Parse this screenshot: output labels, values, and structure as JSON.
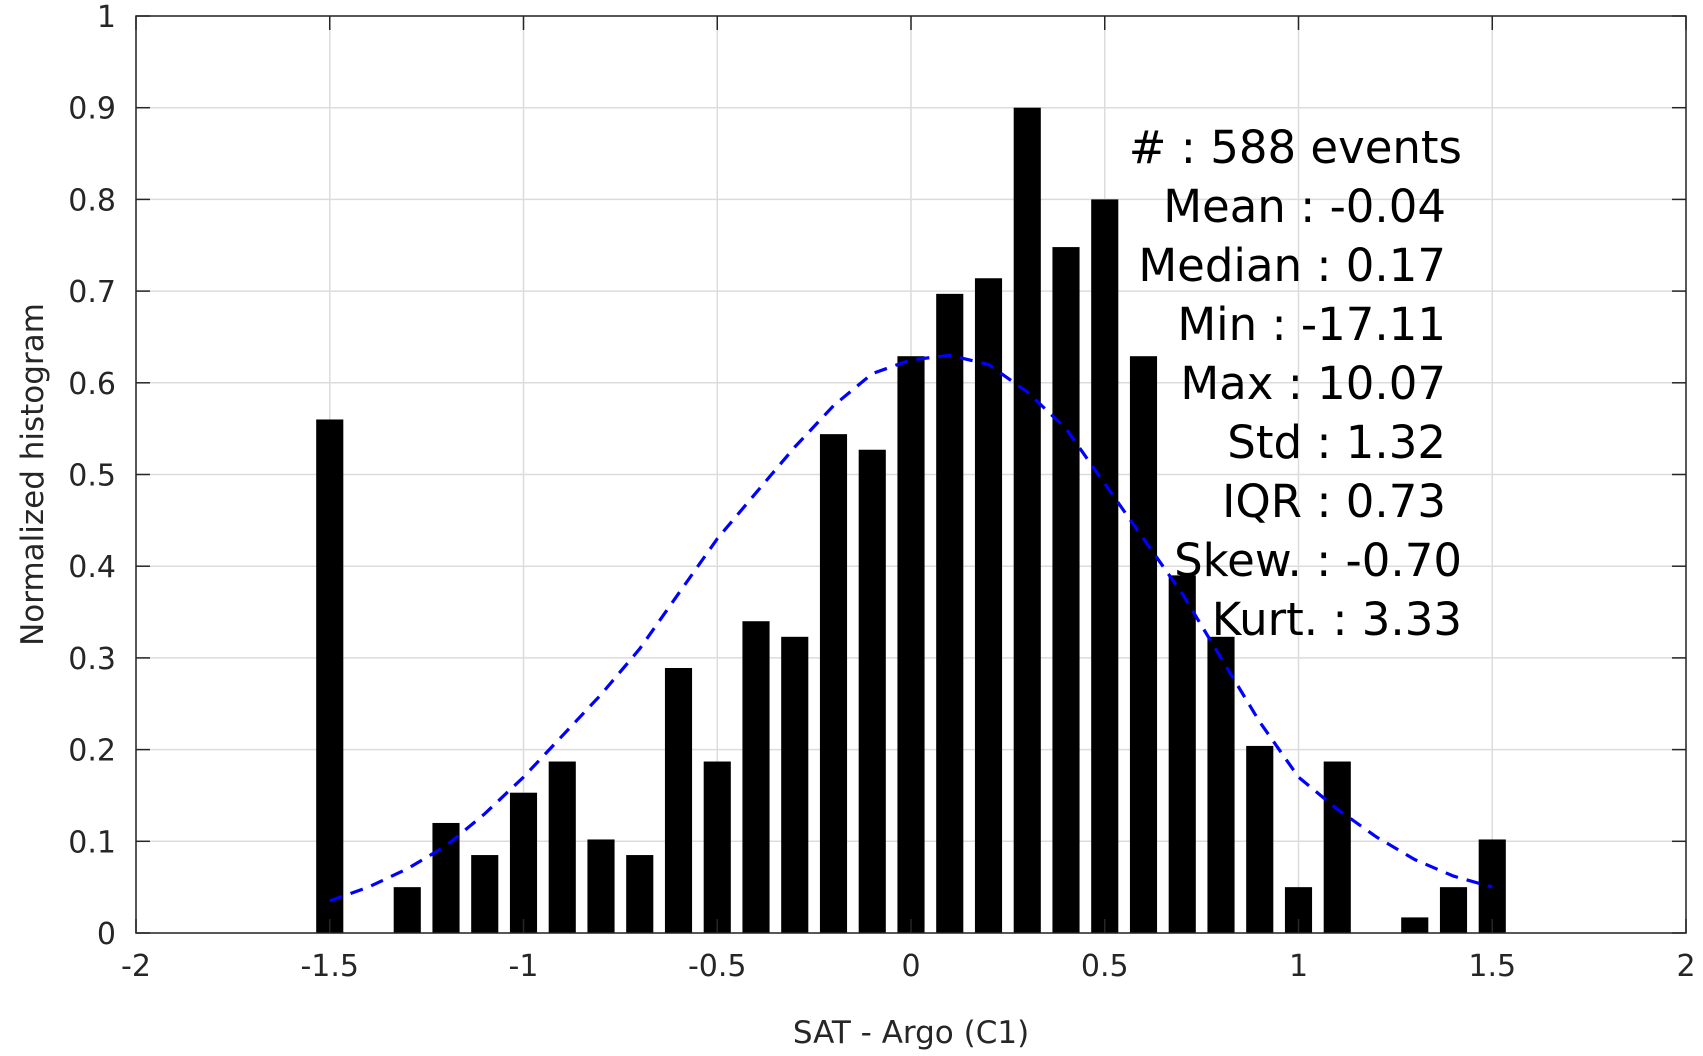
{
  "chart_data": {
    "type": "bar",
    "xlabel": "SAT - Argo (C1)",
    "ylabel": "Normalized histogram",
    "xlim": [
      -2,
      2
    ],
    "ylim": [
      0,
      1
    ],
    "xticks": [
      "-2",
      "-1.5",
      "-1",
      "-0.5",
      "0",
      "0.5",
      "1",
      "1.5",
      "2"
    ],
    "yticks": [
      "0",
      "0.1",
      "0.2",
      "0.3",
      "0.4",
      "0.5",
      "0.6",
      "0.7",
      "0.8",
      "0.9",
      "1"
    ],
    "grid": true,
    "bar_color": "#000000",
    "series": [
      {
        "type": "bar",
        "x": [
          -1.5,
          -1.3,
          -1.2,
          -1.1,
          -1.0,
          -0.9,
          -0.8,
          -0.7,
          -0.6,
          -0.5,
          -0.4,
          -0.3,
          -0.2,
          -0.1,
          0.0,
          0.1,
          0.2,
          0.3,
          0.4,
          0.5,
          0.6,
          0.7,
          0.8,
          0.9,
          1.0,
          1.1,
          1.3,
          1.4,
          1.5
        ],
        "values": [
          0.56,
          0.05,
          0.12,
          0.085,
          0.153,
          0.187,
          0.102,
          0.085,
          0.289,
          0.187,
          0.34,
          0.323,
          0.544,
          0.527,
          0.629,
          0.697,
          0.714,
          0.9,
          0.748,
          0.8,
          0.629,
          0.39,
          0.323,
          0.204,
          0.05,
          0.187,
          0.017,
          0.05,
          0.102
        ]
      },
      {
        "type": "line",
        "style": "dashed",
        "color": "#0000ff",
        "x": [
          -1.5,
          -1.4,
          -1.3,
          -1.2,
          -1.1,
          -1.0,
          -0.9,
          -0.8,
          -0.7,
          -0.6,
          -0.5,
          -0.4,
          -0.3,
          -0.2,
          -0.1,
          0.0,
          0.1,
          0.2,
          0.3,
          0.4,
          0.5,
          0.6,
          0.7,
          0.8,
          0.9,
          1.0,
          1.1,
          1.2,
          1.3,
          1.4,
          1.5
        ],
        "values": [
          0.035,
          0.05,
          0.07,
          0.095,
          0.13,
          0.17,
          0.215,
          0.26,
          0.31,
          0.37,
          0.43,
          0.48,
          0.53,
          0.575,
          0.61,
          0.625,
          0.63,
          0.62,
          0.59,
          0.55,
          0.49,
          0.43,
          0.37,
          0.3,
          0.23,
          0.17,
          0.135,
          0.105,
          0.08,
          0.062,
          0.05
        ]
      }
    ],
    "annotations": [
      "#  : 588 events",
      "Mean : -0.04",
      "Median : 0.17",
      "Min : -17.11",
      "Max : 10.07",
      "Std : 1.32",
      "IQR : 0.73",
      "Skew. : -0.70",
      "Kurt. : 3.33"
    ]
  }
}
